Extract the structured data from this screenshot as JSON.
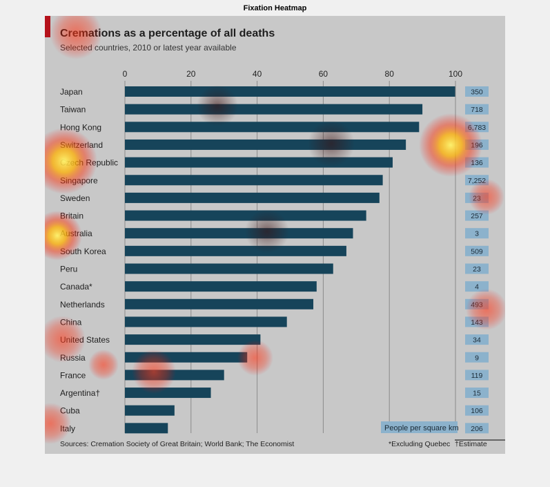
{
  "window": {
    "title": "Fixation Heatmap"
  },
  "chart_data": {
    "type": "bar",
    "orientation": "horizontal",
    "title": "Cremations as a percentage of all deaths",
    "subtitle": "Selected countries, 2010 or latest year available",
    "xlim": [
      0,
      100
    ],
    "xticks": [
      "0",
      "20",
      "40",
      "60",
      "80",
      "100"
    ],
    "grid": true,
    "categories": [
      "Japan",
      "Taiwan",
      "Hong Kong",
      "Switzerland",
      "Czech Republic",
      "Singapore",
      "Sweden",
      "Britain",
      "Australia",
      "South Korea",
      "Peru",
      "Canada*",
      "Netherlands",
      "China",
      "United States",
      "Russia",
      "France",
      "Argentina†",
      "Cuba",
      "Italy"
    ],
    "values": [
      99.9,
      90,
      89,
      85,
      81,
      78,
      77,
      73,
      69,
      67,
      63,
      58,
      57,
      49,
      41,
      37,
      30,
      26,
      15,
      13
    ],
    "density_label": "People per square km",
    "density": [
      "350",
      "718",
      "6,783",
      "196",
      "136",
      "7,252",
      "23",
      "257",
      "3",
      "509",
      "23",
      "4",
      "493",
      "143",
      "34",
      "9",
      "119",
      "15",
      "106",
      "206"
    ],
    "source": "Sources: Cremation Society of Great Britain; World Bank; The Economist",
    "footnote1": "*Excluding Quebec",
    "footnote2": "†Estimate",
    "colors": {
      "bar": "#16445a",
      "density_box": "#8cb2cc",
      "accent": "#b5121b",
      "panel": "#c8c8c8",
      "title": "#1e1e1e"
    }
  }
}
